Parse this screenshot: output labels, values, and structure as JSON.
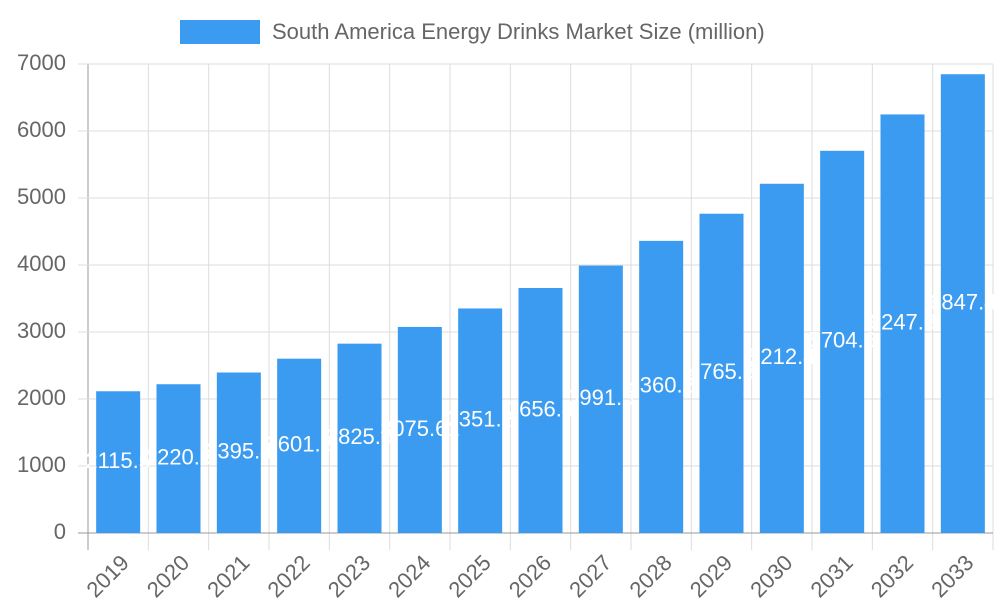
{
  "chart_data": {
    "type": "bar",
    "categories": [
      "2019",
      "2020",
      "2021",
      "2022",
      "2023",
      "2024",
      "2025",
      "2026",
      "2027",
      "2028",
      "2029",
      "2030",
      "2031",
      "2032",
      "2033"
    ],
    "series": [
      {
        "name": "South America Energy Drinks Market Size (million)",
        "color": "#3a9bf0",
        "values": [
          2115.5,
          2220.3,
          2395.4,
          2601.8,
          2825.9,
          3075.61,
          3351.2,
          3656.4,
          3991.3,
          4360.2,
          4765.3,
          5212.4,
          5704.6,
          6247.3,
          6847.4
        ]
      }
    ],
    "ylim": [
      0,
      7000
    ],
    "yticks": [
      0,
      1000,
      2000,
      3000,
      4000,
      5000,
      6000,
      7000
    ],
    "grid": true
  }
}
